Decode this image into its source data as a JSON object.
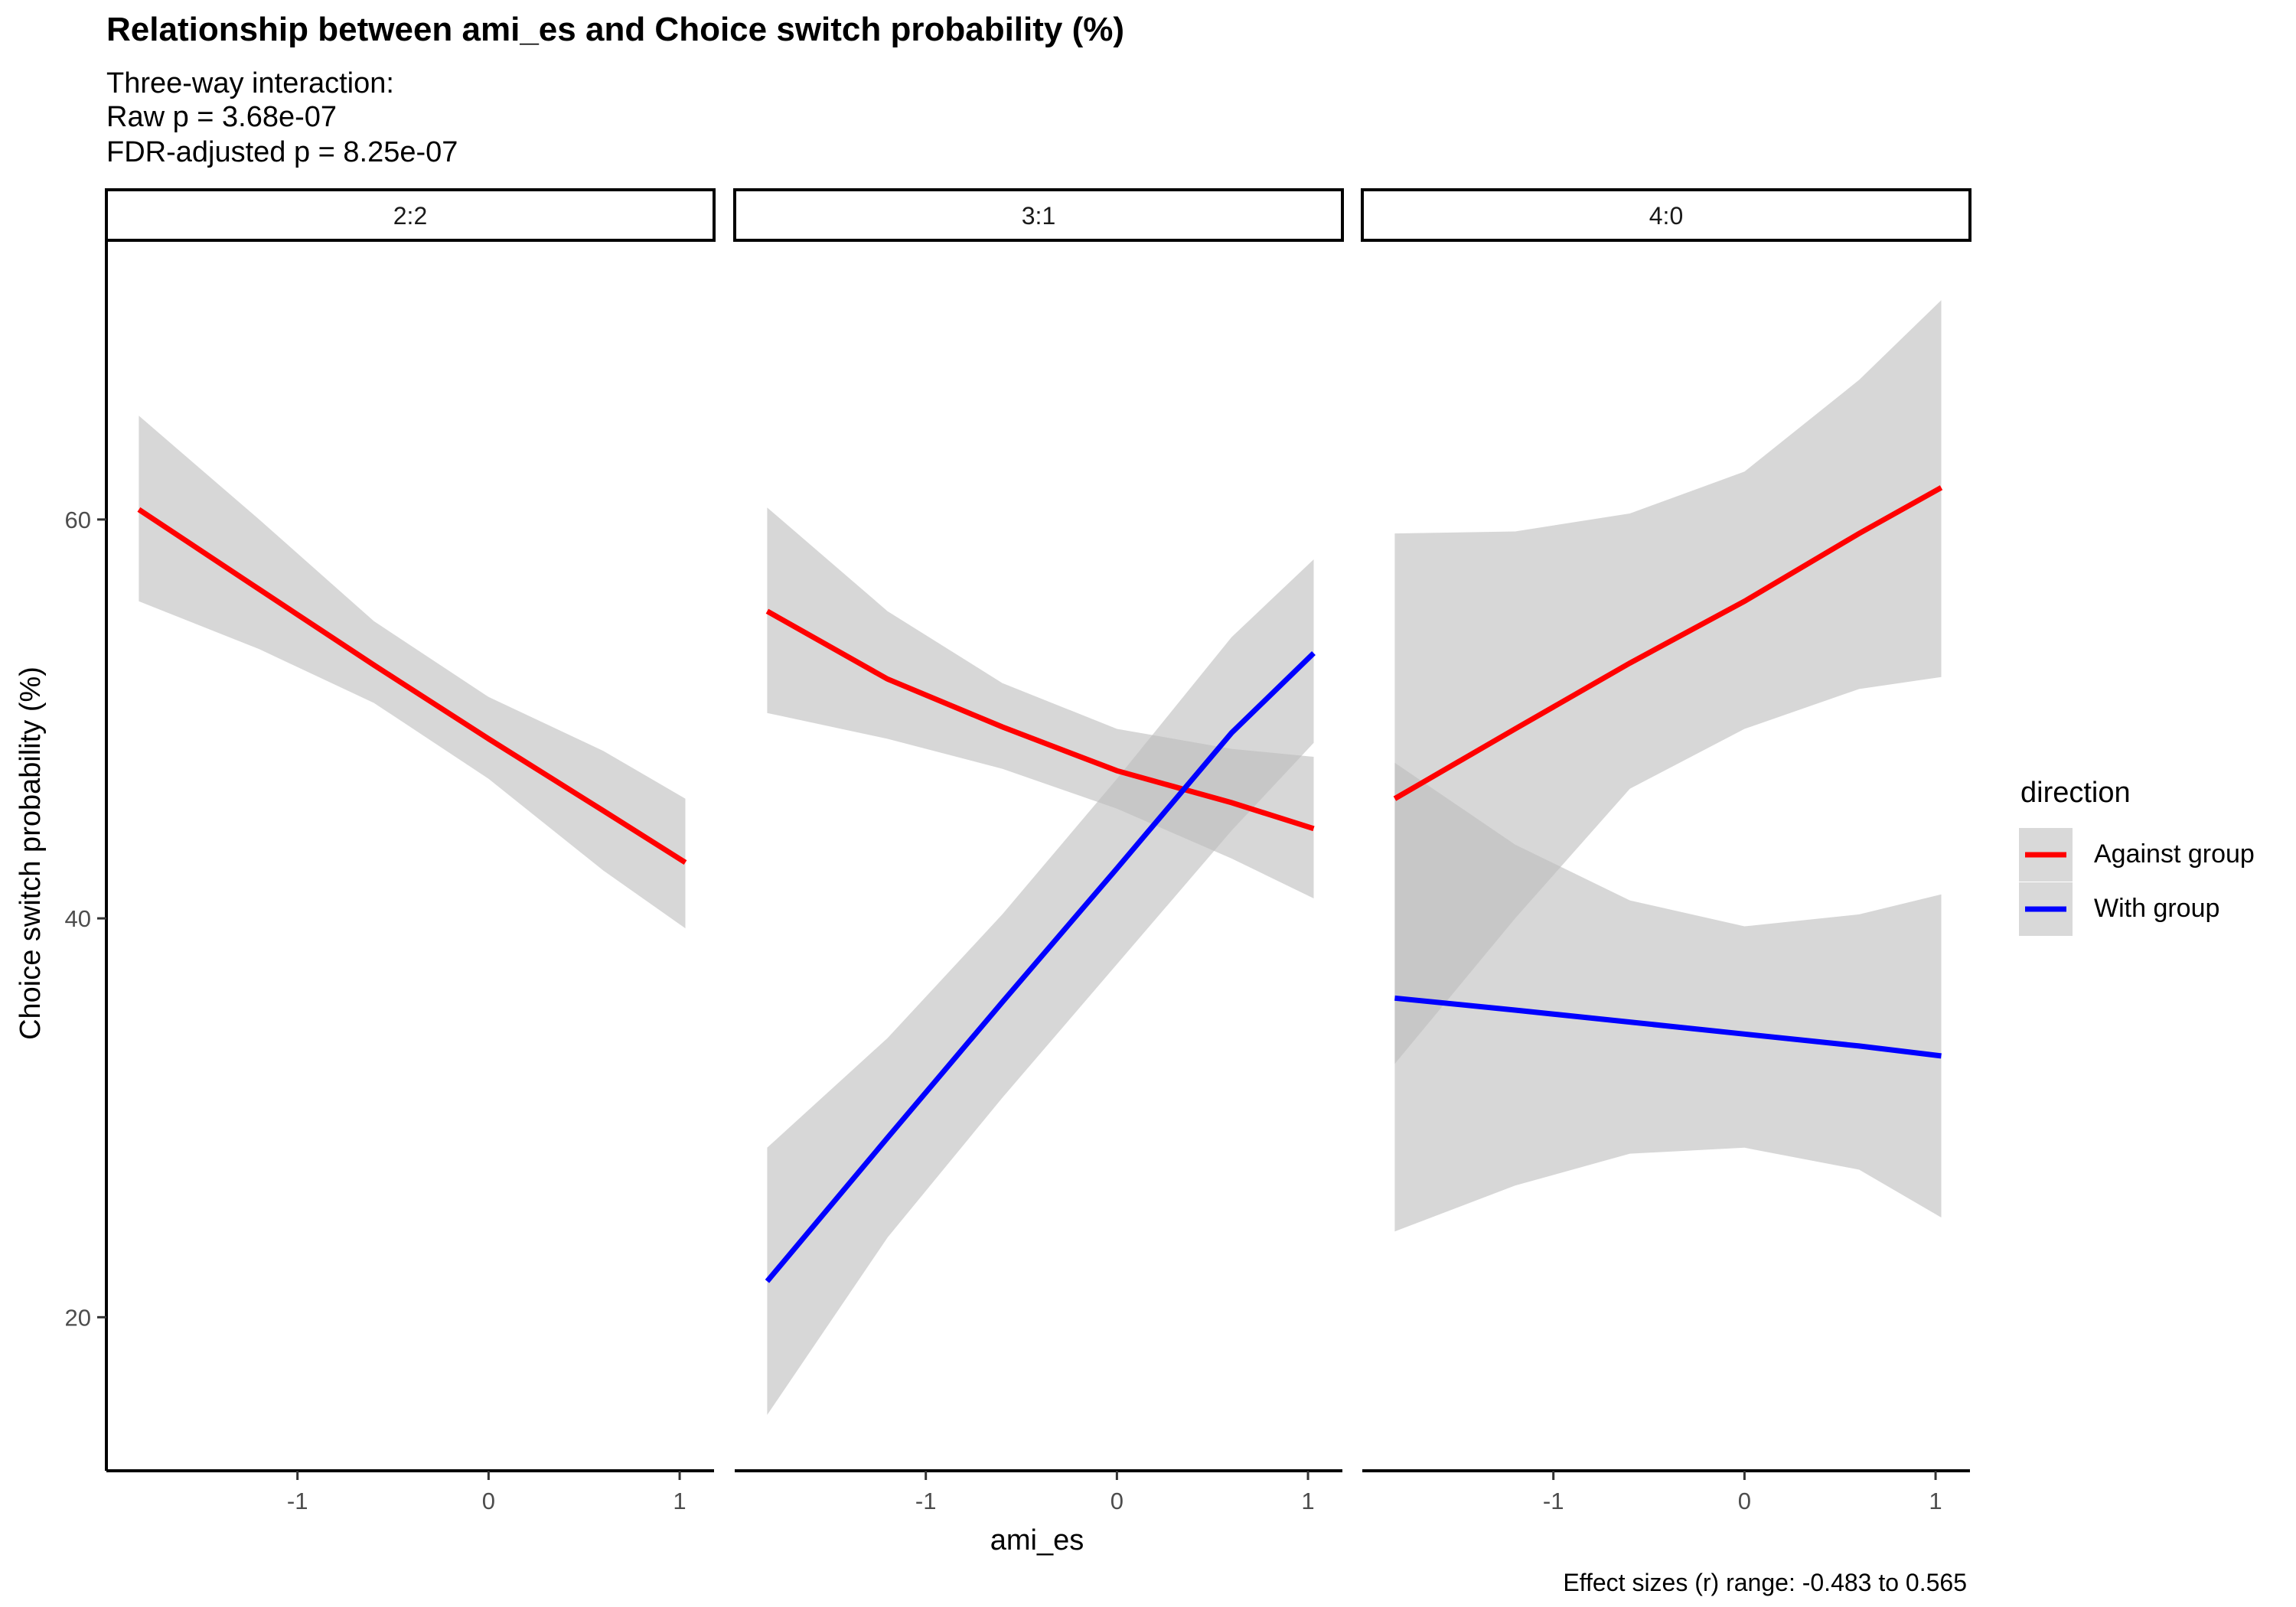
{
  "title": "Relationship between ami_es and Choice switch probability (%)",
  "subtitle_lines": [
    "Three-way interaction:",
    "Raw p = 3.68e-07",
    "FDR-adjusted p = 8.25e-07"
  ],
  "caption": "Effect sizes (r) range: -0.483 to 0.565",
  "legend": {
    "title": "direction",
    "items": [
      {
        "label": "Against group",
        "color": "#ff0000"
      },
      {
        "label": "With group",
        "color": "#0000ff"
      }
    ]
  },
  "chart_data": {
    "type": "line",
    "xlabel": "ami_es",
    "ylabel": "Choice switch probability (%)",
    "x_ticks": [
      -1,
      0,
      1
    ],
    "y_ticks": [
      20,
      40,
      60
    ],
    "xlim": [
      -2.0,
      1.18
    ],
    "ylim": [
      12.3,
      74.0
    ],
    "band_color": "#bdbdbd",
    "panels": [
      {
        "label": "2:2",
        "series": [
          {
            "name": "Against group",
            "color": "#ff0000",
            "x": [
              -1.83,
              -1.2,
              -0.6,
              0,
              0.6,
              1.03
            ],
            "y": [
              60.5,
              56.5,
              52.7,
              49.0,
              45.4,
              42.8
            ],
            "lower": [
              55.9,
              53.5,
              50.8,
              47.0,
              42.4,
              39.5
            ],
            "upper": [
              65.2,
              60.0,
              54.9,
              51.1,
              48.4,
              46.0
            ]
          }
        ]
      },
      {
        "label": "3:1",
        "series": [
          {
            "name": "Against group",
            "color": "#ff0000",
            "x": [
              -1.83,
              -1.2,
              -0.6,
              0,
              0.6,
              1.03
            ],
            "y": [
              55.4,
              52.0,
              49.6,
              47.4,
              45.8,
              44.5
            ],
            "lower": [
              50.3,
              49.0,
              47.5,
              45.5,
              43.0,
              41.0
            ],
            "upper": [
              60.6,
              55.4,
              51.8,
              49.5,
              48.5,
              48.1
            ]
          },
          {
            "name": "With group",
            "color": "#0000ff",
            "x": [
              -1.83,
              -1.2,
              -0.6,
              0,
              0.6,
              1.03
            ],
            "y": [
              21.8,
              29.0,
              35.8,
              42.5,
              49.3,
              53.3
            ],
            "lower": [
              15.1,
              24.0,
              31.0,
              37.7,
              44.4,
              48.8
            ],
            "upper": [
              28.5,
              34.0,
              40.2,
              47.0,
              54.1,
              58.0
            ]
          }
        ]
      },
      {
        "label": "4:0",
        "series": [
          {
            "name": "Against group",
            "color": "#ff0000",
            "x": [
              -1.83,
              -1.2,
              -0.6,
              0,
              0.6,
              1.03
            ],
            "y": [
              46.0,
              49.5,
              52.8,
              55.9,
              59.3,
              61.6
            ],
            "lower": [
              32.7,
              40.0,
              46.5,
              49.5,
              51.5,
              52.1
            ],
            "upper": [
              59.3,
              59.4,
              60.3,
              62.4,
              67.0,
              71.0
            ]
          },
          {
            "name": "With group",
            "color": "#0000ff",
            "x": [
              -1.83,
              -1.2,
              -0.6,
              0,
              0.6,
              1.03
            ],
            "y": [
              36.0,
              35.4,
              34.8,
              34.2,
              33.6,
              33.1
            ],
            "lower": [
              24.3,
              26.6,
              28.2,
              28.5,
              27.4,
              25.0
            ],
            "upper": [
              47.8,
              43.7,
              40.9,
              39.6,
              40.2,
              41.2
            ]
          }
        ]
      }
    ]
  }
}
